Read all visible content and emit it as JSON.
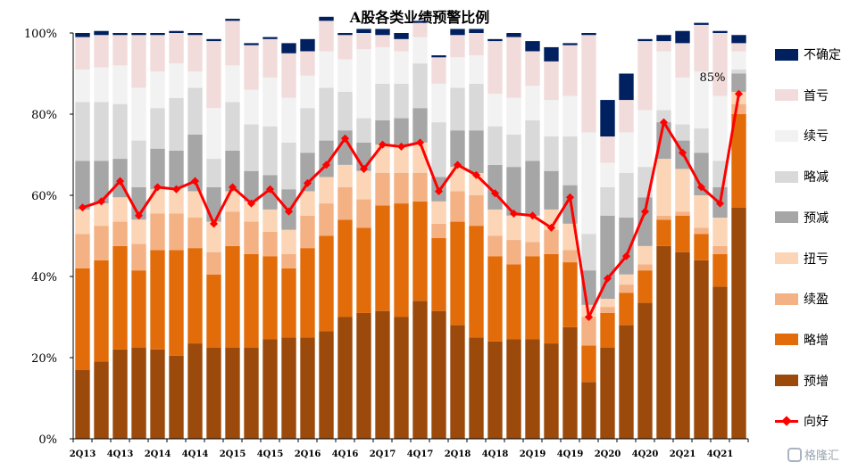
{
  "chart_data": {
    "type": "bar",
    "stacked": true,
    "title": "A股各类业绩预警比例",
    "categories": [
      "2Q13",
      "3Q13",
      "4Q13",
      "1Q14",
      "2Q14",
      "3Q14",
      "4Q14",
      "1Q15",
      "2Q15",
      "3Q15",
      "4Q15",
      "1Q16",
      "2Q16",
      "3Q16",
      "4Q16",
      "1Q17",
      "2Q17",
      "3Q17",
      "4Q17",
      "1Q18",
      "2Q18",
      "3Q18",
      "4Q18",
      "1Q19",
      "2Q19",
      "3Q19",
      "4Q19",
      "1Q20",
      "2Q20",
      "3Q20",
      "4Q20",
      "1Q21",
      "2Q21",
      "3Q21",
      "4Q21",
      "1Q22"
    ],
    "x_tick_labels": [
      "2Q13",
      "4Q13",
      "2Q14",
      "4Q14",
      "2Q15",
      "4Q15",
      "2Q16",
      "4Q16",
      "2Q17",
      "4Q17",
      "2Q18",
      "4Q18",
      "2Q19",
      "4Q19",
      "2Q20",
      "4Q20",
      "2Q21",
      "4Q21"
    ],
    "ylim": [
      0,
      100
    ],
    "y_ticks": [
      "0%",
      "20%",
      "40%",
      "60%",
      "80%",
      "100%"
    ],
    "series": [
      {
        "name": "预增",
        "color": "#9b4a0b",
        "values": [
          17,
          19,
          22,
          22.5,
          22,
          20.5,
          23.5,
          22.5,
          22.5,
          22.5,
          24.5,
          25,
          25,
          26.5,
          30,
          31,
          31.5,
          30,
          34,
          31.5,
          28,
          25,
          24,
          24.5,
          24.5,
          23.5,
          27.5,
          14,
          22.5,
          28,
          33.5,
          47.5,
          46,
          44,
          37.5,
          57
        ]
      },
      {
        "name": "略增",
        "color": "#e36c0a",
        "values": [
          25,
          25,
          25.5,
          19,
          24.5,
          26,
          23.5,
          18,
          25,
          23,
          20.5,
          17,
          22,
          23.5,
          24,
          21,
          26,
          28,
          24.5,
          18,
          25.5,
          27.5,
          21,
          18.5,
          20.5,
          22,
          16,
          9,
          8.5,
          8,
          8,
          6.5,
          9,
          6.5,
          8,
          23
        ]
      },
      {
        "name": "续盈",
        "color": "#f4b183",
        "values": [
          8.5,
          8.5,
          6,
          6.5,
          9,
          9,
          7.5,
          5.5,
          8.5,
          8,
          6,
          3.5,
          8,
          8,
          8,
          7,
          8,
          7.5,
          7,
          3.5,
          7.5,
          7.5,
          5,
          6,
          3.5,
          6,
          3,
          7,
          1.5,
          2,
          1.5,
          1,
          1,
          1.5,
          2,
          2.5
        ]
      },
      {
        "name": "扭亏",
        "color": "#fbd5b5",
        "values": [
          6,
          5.5,
          6,
          6,
          6,
          6.5,
          6.5,
          7.5,
          5,
          5,
          5.5,
          6,
          6,
          6.5,
          5.5,
          7,
          7,
          7,
          7.5,
          5.5,
          6,
          5.5,
          6.5,
          6,
          6.5,
          5,
          6.5,
          3,
          2,
          2.5,
          4.5,
          14,
          10.5,
          8,
          7,
          3
        ]
      },
      {
        "name": "预减",
        "color": "#a6a6a6",
        "values": [
          12,
          10.5,
          9.5,
          8,
          10,
          9,
          14,
          8.5,
          10,
          7.5,
          8.5,
          10,
          9.5,
          9,
          8.5,
          7,
          6,
          6.5,
          8.5,
          6,
          9,
          10.5,
          11,
          12,
          13.5,
          9.5,
          9.5,
          8.5,
          20.5,
          14,
          12,
          9,
          7,
          10.5,
          7.5,
          4.5
        ]
      },
      {
        "name": "略减",
        "color": "#d9d9d9",
        "values": [
          14.5,
          14.5,
          13.5,
          11.5,
          10,
          13,
          11.5,
          7,
          12,
          11.5,
          12,
          11.5,
          11,
          13,
          9.5,
          6,
          9,
          8.5,
          11,
          13.5,
          10.5,
          11.5,
          9.5,
          8,
          10,
          8.5,
          12,
          9,
          7,
          11,
          7.5,
          3,
          4,
          6,
          6.5,
          1
        ]
      },
      {
        "name": "续亏",
        "color": "#f2f2f2",
        "values": [
          8,
          8.5,
          9.5,
          13,
          9,
          8.5,
          4,
          12.5,
          9,
          8.5,
          12,
          11,
          8,
          9,
          8,
          17,
          9,
          8,
          6.5,
          9.5,
          7.5,
          7,
          8,
          9,
          8.5,
          9,
          10,
          25,
          6,
          10,
          14,
          14.5,
          11.5,
          14,
          16,
          4.5
        ]
      },
      {
        "name": "首亏",
        "color": "#f2dcdb",
        "values": [
          8,
          8,
          7.5,
          13,
          9,
          7.5,
          9,
          16.5,
          11,
          11,
          9.5,
          11,
          6,
          7.5,
          6,
          4,
          3,
          3,
          3.5,
          6.5,
          5.5,
          5.5,
          13,
          15,
          8.5,
          9.5,
          12.5,
          24,
          6.5,
          8,
          17,
          2.5,
          8.5,
          11.5,
          15.5,
          2
        ]
      },
      {
        "name": "不确定",
        "color": "#002060",
        "values": [
          1,
          1,
          0.5,
          0.5,
          0.5,
          0.5,
          0.5,
          0.5,
          0.5,
          0.5,
          0.5,
          2.5,
          3,
          1,
          0.5,
          1,
          1.5,
          1.5,
          0.5,
          0.5,
          1.5,
          1,
          0.5,
          1,
          2.5,
          3.5,
          0.5,
          0.5,
          9,
          6.5,
          0.5,
          1.5,
          3,
          0.5,
          0.5,
          2
        ]
      }
    ],
    "line": {
      "name": "向好",
      "color": "#ff0000",
      "values": [
        57,
        58.5,
        63.5,
        55,
        62,
        61.5,
        63.5,
        53,
        62,
        58,
        61.5,
        56,
        63,
        67.5,
        74,
        66.5,
        72.5,
        72,
        73,
        61,
        67.5,
        65,
        60.5,
        55.5,
        55,
        52,
        59.5,
        30,
        39.5,
        45,
        56,
        78,
        70.5,
        62,
        58,
        85
      ]
    },
    "annotation": "85%",
    "legend": {
      "position": "right",
      "items": [
        {
          "label": "不确定",
          "color": "#002060",
          "kind": "bar"
        },
        {
          "label": "首亏",
          "color": "#f2dcdb",
          "kind": "bar"
        },
        {
          "label": "续亏",
          "color": "#f2f2f2",
          "kind": "bar"
        },
        {
          "label": "略减",
          "color": "#d9d9d9",
          "kind": "bar"
        },
        {
          "label": "预减",
          "color": "#a6a6a6",
          "kind": "bar"
        },
        {
          "label": "扭亏",
          "color": "#fbd5b5",
          "kind": "bar"
        },
        {
          "label": "续盈",
          "color": "#f4b183",
          "kind": "bar"
        },
        {
          "label": "略增",
          "color": "#e36c0a",
          "kind": "bar"
        },
        {
          "label": "预增",
          "color": "#9b4a0b",
          "kind": "bar"
        },
        {
          "label": "向好",
          "color": "#ff0000",
          "kind": "line"
        }
      ]
    },
    "grid": false
  },
  "watermark": "格隆汇"
}
